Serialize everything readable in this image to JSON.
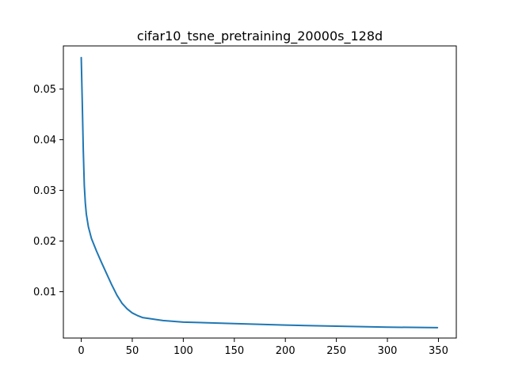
{
  "chart_data": {
    "type": "line",
    "title": "cifar10_tsne_pretraining_20000s_128d",
    "xlabel": "",
    "ylabel": "",
    "xlim": [
      -17.5,
      367.5
    ],
    "ylim": [
      0.00085,
      0.0585
    ],
    "xticks": [
      0,
      50,
      100,
      150,
      200,
      250,
      300,
      350
    ],
    "xtick_labels": [
      "0",
      "50",
      "100",
      "150",
      "200",
      "250",
      "300",
      "350"
    ],
    "yticks": [
      0.01,
      0.02,
      0.03,
      0.04,
      0.05
    ],
    "ytick_labels": [
      "0.01",
      "0.02",
      "0.03",
      "0.04",
      "0.05"
    ],
    "grid": false,
    "legend": "none",
    "series": [
      {
        "color": "#1f77b4",
        "x": [
          0,
          1,
          2,
          3,
          4,
          5,
          7,
          10,
          15,
          20,
          25,
          30,
          35,
          40,
          45,
          50,
          55,
          60,
          70,
          80,
          100,
          150,
          200,
          250,
          300,
          349
        ],
        "y": [
          0.0562,
          0.0475,
          0.038,
          0.031,
          0.0275,
          0.0253,
          0.0228,
          0.0205,
          0.018,
          0.0157,
          0.0135,
          0.0113,
          0.0093,
          0.0077,
          0.0066,
          0.0058,
          0.0053,
          0.0049,
          0.0046,
          0.0043,
          0.004,
          0.0037,
          0.0034,
          0.0032,
          0.003,
          0.0029
        ]
      }
    ]
  }
}
